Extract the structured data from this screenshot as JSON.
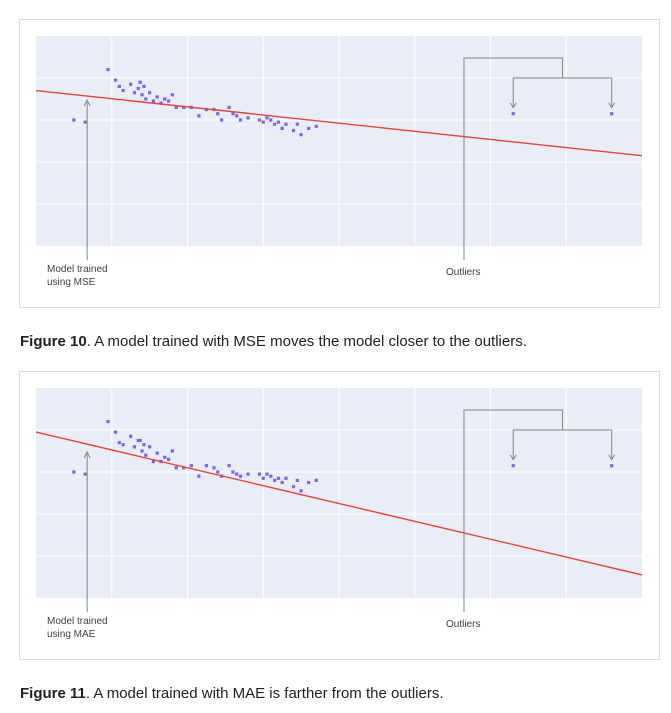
{
  "chart_data": [
    {
      "type": "scatter",
      "xlabel": "",
      "ylabel": "",
      "xlim": [
        0,
        16
      ],
      "ylim": [
        0,
        10
      ],
      "grid": true,
      "fit_line": {
        "x": [
          0,
          16
        ],
        "y": [
          7.4,
          4.3
        ]
      },
      "points": [
        [
          1.0,
          6.0
        ],
        [
          1.3,
          5.9
        ],
        [
          1.9,
          8.4
        ],
        [
          2.1,
          7.9
        ],
        [
          2.2,
          7.6
        ],
        [
          2.3,
          7.4
        ],
        [
          2.5,
          7.7
        ],
        [
          2.6,
          7.3
        ],
        [
          2.7,
          7.5
        ],
        [
          2.8,
          7.2
        ],
        [
          2.9,
          7.0
        ],
        [
          2.75,
          7.8
        ],
        [
          2.85,
          7.6
        ],
        [
          3.0,
          7.3
        ],
        [
          3.1,
          6.9
        ],
        [
          3.2,
          7.1
        ],
        [
          3.3,
          6.8
        ],
        [
          3.4,
          7.0
        ],
        [
          3.5,
          6.9
        ],
        [
          3.6,
          7.2
        ],
        [
          3.7,
          6.6
        ],
        [
          3.9,
          6.6
        ],
        [
          4.1,
          6.6
        ],
        [
          4.3,
          6.2
        ],
        [
          4.5,
          6.5
        ],
        [
          4.7,
          6.5
        ],
        [
          4.8,
          6.3
        ],
        [
          4.9,
          6.0
        ],
        [
          5.1,
          6.6
        ],
        [
          5.2,
          6.3
        ],
        [
          5.3,
          6.2
        ],
        [
          5.4,
          6.0
        ],
        [
          5.6,
          6.1
        ],
        [
          5.9,
          6.0
        ],
        [
          6.0,
          5.9
        ],
        [
          6.1,
          6.1
        ],
        [
          6.2,
          6.0
        ],
        [
          6.3,
          5.8
        ],
        [
          6.4,
          5.9
        ],
        [
          6.5,
          5.6
        ],
        [
          6.6,
          5.8
        ],
        [
          6.8,
          5.5
        ],
        [
          6.9,
          5.8
        ],
        [
          7.0,
          5.3
        ],
        [
          7.2,
          5.6
        ],
        [
          7.4,
          5.7
        ],
        [
          12.6,
          6.3
        ],
        [
          15.2,
          6.3
        ]
      ],
      "annotations": [
        {
          "name": "model-label",
          "text": "Model trained\nusing MSE"
        },
        {
          "name": "outliers-label",
          "text": "Outliers"
        }
      ]
    },
    {
      "type": "scatter",
      "xlabel": "",
      "ylabel": "",
      "xlim": [
        0,
        16
      ],
      "ylim": [
        0,
        10
      ],
      "grid": true,
      "fit_line": {
        "x": [
          0,
          16
        ],
        "y": [
          7.9,
          1.1
        ]
      },
      "points": [
        [
          1.0,
          6.0
        ],
        [
          1.3,
          5.9
        ],
        [
          1.9,
          8.4
        ],
        [
          2.1,
          7.9
        ],
        [
          2.2,
          7.4
        ],
        [
          2.3,
          7.3
        ],
        [
          2.5,
          7.7
        ],
        [
          2.6,
          7.2
        ],
        [
          2.7,
          7.5
        ],
        [
          2.8,
          7.0
        ],
        [
          2.9,
          6.8
        ],
        [
          2.75,
          7.5
        ],
        [
          2.85,
          7.3
        ],
        [
          3.0,
          7.2
        ],
        [
          3.1,
          6.5
        ],
        [
          3.2,
          6.9
        ],
        [
          3.3,
          6.5
        ],
        [
          3.4,
          6.7
        ],
        [
          3.5,
          6.6
        ],
        [
          3.6,
          7.0
        ],
        [
          3.7,
          6.2
        ],
        [
          3.9,
          6.2
        ],
        [
          4.1,
          6.3
        ],
        [
          4.3,
          5.8
        ],
        [
          4.5,
          6.3
        ],
        [
          4.7,
          6.2
        ],
        [
          4.8,
          6.0
        ],
        [
          4.9,
          5.8
        ],
        [
          5.1,
          6.3
        ],
        [
          5.2,
          6.0
        ],
        [
          5.3,
          5.9
        ],
        [
          5.4,
          5.8
        ],
        [
          5.6,
          5.9
        ],
        [
          5.9,
          5.9
        ],
        [
          6.0,
          5.7
        ],
        [
          6.1,
          5.9
        ],
        [
          6.2,
          5.8
        ],
        [
          6.3,
          5.6
        ],
        [
          6.4,
          5.7
        ],
        [
          6.5,
          5.5
        ],
        [
          6.6,
          5.7
        ],
        [
          6.8,
          5.3
        ],
        [
          6.9,
          5.6
        ],
        [
          7.0,
          5.1
        ],
        [
          7.2,
          5.5
        ],
        [
          7.4,
          5.6
        ],
        [
          12.6,
          6.3
        ],
        [
          15.2,
          6.3
        ]
      ],
      "annotations": [
        {
          "name": "model-label",
          "text": "Model trained\nusing MAE"
        },
        {
          "name": "outliers-label",
          "text": "Outliers"
        }
      ]
    }
  ],
  "colors": {
    "plot_background": "#e8edf8",
    "grid": "#ffffff",
    "points": "#8162e8",
    "fit_line": "#ea4335",
    "annotation_lines": "#80868b"
  },
  "captions": [
    {
      "label": "Figure 10",
      "text": ". A model trained with MSE moves the model closer to the outliers."
    },
    {
      "label": "Figure 11",
      "text": ". A model trained with MAE is farther from the outliers."
    }
  ]
}
